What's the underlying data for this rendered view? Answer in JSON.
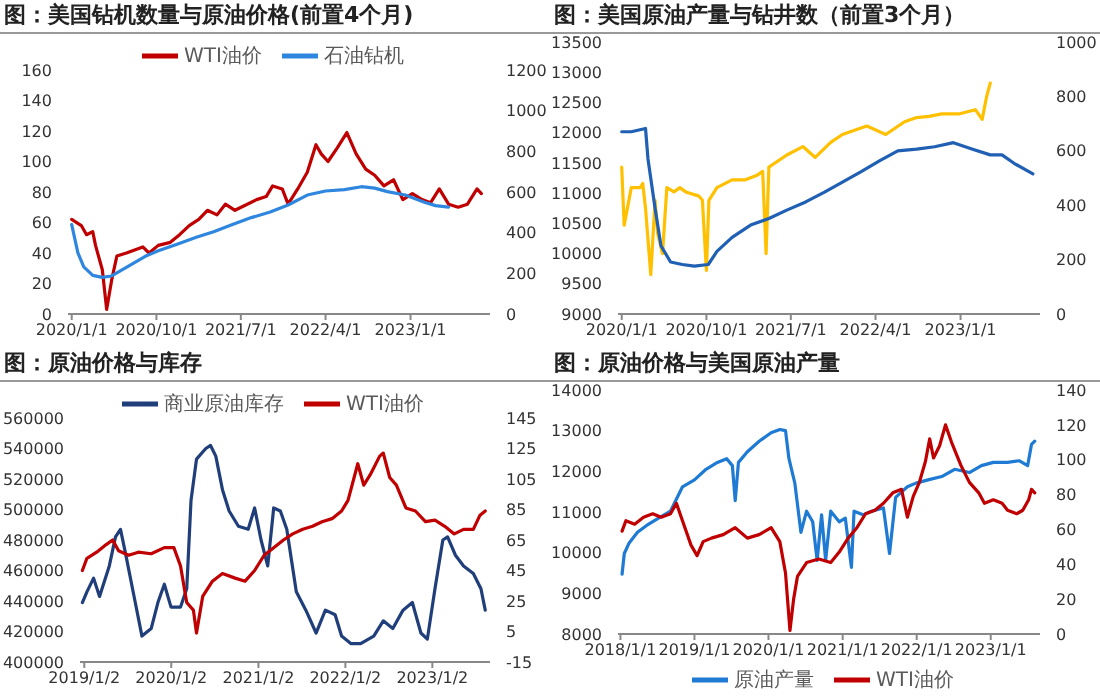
{
  "chart_data": [
    {
      "type": "line",
      "title": "图：美国钻机数量与原油价格(前置4个月)",
      "legend": "top",
      "xlim": [
        "2019-12-20",
        "2023-09-15"
      ],
      "xticks": [
        {
          "value": "2020-01-01",
          "label": "2020/1/1"
        },
        {
          "value": "2020-10-01",
          "label": "2020/10/1"
        },
        {
          "value": "2021-07-01",
          "label": "2021/7/1"
        },
        {
          "value": "2022-04-01",
          "label": "2022/4/1"
        },
        {
          "value": "2023-01-01",
          "label": "2023/1/1"
        }
      ],
      "ylim": [
        0,
        160
      ],
      "yticks": [
        0,
        20,
        40,
        60,
        80,
        100,
        120,
        140,
        160
      ],
      "y2lim": [
        0,
        1200
      ],
      "y2ticks": [
        0,
        200,
        400,
        600,
        800,
        1000,
        1200
      ],
      "series": [
        {
          "name": "WTI油价",
          "color": "#c00000",
          "x": [
            "2020-01-01",
            "2020-02-01",
            "2020-02-18",
            "2020-03-09",
            "2020-03-18",
            "2020-04-09",
            "2020-04-23",
            "2020-05-09",
            "2020-05-26",
            "2020-06-26",
            "2020-08-18",
            "2020-09-07",
            "2020-10-07",
            "2020-11-15",
            "2020-12-15",
            "2021-01-15",
            "2021-02-15",
            "2021-03-15",
            "2021-04-15",
            "2021-05-12",
            "2021-06-12",
            "2021-07-12",
            "2021-08-21",
            "2021-09-21",
            "2021-10-12",
            "2021-11-12",
            "2021-12-01",
            "2022-01-01",
            "2022-02-01",
            "2022-03-01",
            "2022-03-18",
            "2022-04-09",
            "2022-05-09",
            "2022-06-09",
            "2022-07-09",
            "2022-08-09",
            "2022-09-07",
            "2022-10-07",
            "2022-11-07",
            "2022-12-07",
            "2023-01-07",
            "2023-02-07",
            "2023-03-07",
            "2023-04-04",
            "2023-05-04",
            "2023-06-04",
            "2023-07-04",
            "2023-08-04",
            "2023-08-18"
          ],
          "values": [
            62,
            58,
            52,
            54,
            45,
            29,
            3,
            22,
            38,
            40,
            44,
            40,
            45,
            47,
            52,
            58,
            62,
            68,
            65,
            72,
            68,
            71,
            75,
            77,
            84,
            82,
            72,
            82,
            93,
            111,
            105,
            100,
            109,
            119,
            105,
            95,
            91,
            84,
            88,
            75,
            79,
            75,
            73,
            82,
            72,
            70,
            72,
            82,
            79
          ]
        },
        {
          "name": "石油钻机",
          "color": "#2e86de",
          "axis": "y2",
          "x": [
            "2020-01-01",
            "2020-01-21",
            "2020-02-09",
            "2020-03-09",
            "2020-04-09",
            "2020-05-09",
            "2020-06-09",
            "2020-07-18",
            "2020-08-26",
            "2020-10-07",
            "2020-12-07",
            "2021-02-07",
            "2021-04-04",
            "2021-06-04",
            "2021-08-04",
            "2021-10-04",
            "2021-12-01",
            "2022-02-01",
            "2022-04-01",
            "2022-06-01",
            "2022-07-26",
            "2022-09-07",
            "2022-10-18",
            "2022-12-15",
            "2023-02-15",
            "2023-03-23",
            "2023-05-04"
          ],
          "values": [
            440,
            301,
            232,
            190,
            180,
            187,
            215,
            249,
            284,
            311,
            343,
            377,
            405,
            440,
            474,
            502,
            536,
            585,
            605,
            612,
            626,
            619,
            602,
            585,
            550,
            533,
            526
          ]
        }
      ]
    },
    {
      "type": "line",
      "title": "图：美国原油产量与钻井数（前置3个月）",
      "xlim": [
        "2019-12-20",
        "2023-09-15"
      ],
      "xticks": [
        {
          "value": "2020-01-01",
          "label": "2020/1/1"
        },
        {
          "value": "2020-10-01",
          "label": "2020/10/1"
        },
        {
          "value": "2021-07-01",
          "label": "2021/7/1"
        },
        {
          "value": "2022-04-01",
          "label": "2022/4/1"
        },
        {
          "value": "2023-01-01",
          "label": "2023/1/1"
        }
      ],
      "ylim": [
        9000,
        13500
      ],
      "yticks": [
        9000,
        9500,
        10000,
        10500,
        11000,
        11500,
        12000,
        12500,
        13000,
        13500
      ],
      "y2lim": [
        0,
        1000
      ],
      "y2ticks": [
        0,
        200,
        400,
        600,
        800,
        1000
      ],
      "series": [
        {
          "color": "#ffc000",
          "x": [
            "2020-01-01",
            "2020-01-09",
            "2020-02-01",
            "2020-03-01",
            "2020-03-09",
            "2020-03-18",
            "2020-04-04",
            "2020-04-18",
            "2020-04-26",
            "2020-05-12",
            "2020-05-26",
            "2020-06-18",
            "2020-07-07",
            "2020-07-26",
            "2020-09-07",
            "2020-09-18",
            "2020-10-01",
            "2020-10-09",
            "2020-11-04",
            "2020-12-23",
            "2021-02-04",
            "2021-03-12",
            "2021-04-01",
            "2021-04-12",
            "2021-04-21",
            "2021-06-18",
            "2021-08-09",
            "2021-09-18",
            "2021-11-07",
            "2021-12-15",
            "2022-01-23",
            "2022-03-04",
            "2022-05-04",
            "2022-07-04",
            "2022-08-12",
            "2022-09-21",
            "2022-11-01",
            "2022-12-26",
            "2023-02-18",
            "2023-03-12",
            "2023-03-26",
            "2023-04-07"
          ],
          "values": [
            11430,
            10470,
            11090,
            11090,
            11160,
            10750,
            9650,
            10880,
            10340,
            10000,
            11090,
            11020,
            11090,
            11020,
            10950,
            10880,
            9720,
            10880,
            11090,
            11220,
            11220,
            11290,
            11360,
            10000,
            11430,
            11630,
            11770,
            11590,
            11840,
            11970,
            12040,
            12110,
            11970,
            12180,
            12250,
            12270,
            12310,
            12310,
            12380,
            12220,
            12590,
            12820
          ]
        },
        {
          "color": "#1f5fb4",
          "axis": "y2",
          "x": [
            "2020-01-01",
            "2020-02-01",
            "2020-03-18",
            "2020-03-26",
            "2020-04-18",
            "2020-05-07",
            "2020-06-07",
            "2020-07-15",
            "2020-08-23",
            "2020-10-07",
            "2020-11-04",
            "2020-12-23",
            "2021-02-21",
            "2021-04-21",
            "2021-06-18",
            "2021-08-18",
            "2021-10-18",
            "2021-12-15",
            "2022-02-15",
            "2022-04-15",
            "2022-06-12",
            "2022-08-12",
            "2022-10-09",
            "2022-12-09",
            "2023-02-09",
            "2023-04-07",
            "2023-05-15",
            "2023-06-23",
            "2023-08-23"
          ],
          "values": [
            670,
            670,
            682,
            570,
            388,
            251,
            191,
            182,
            176,
            182,
            230,
            282,
            327,
            351,
            382,
            412,
            448,
            485,
            524,
            564,
            600,
            606,
            615,
            630,
            606,
            585,
            585,
            554,
            515
          ]
        }
      ]
    },
    {
      "type": "line",
      "title": "图：原油价格与库存",
      "legend": "top",
      "xlim": [
        "2018-12-15",
        "2023-09-01"
      ],
      "xticks": [
        {
          "value": "2019-01-02",
          "label": "2019/1/2"
        },
        {
          "value": "2020-01-02",
          "label": "2020/1/2"
        },
        {
          "value": "2021-01-02",
          "label": "2021/1/2"
        },
        {
          "value": "2022-01-02",
          "label": "2022/1/2"
        },
        {
          "value": "2023-01-02",
          "label": "2023/1/2"
        }
      ],
      "ylim": [
        400000,
        560000
      ],
      "yticks": [
        400000,
        420000,
        440000,
        460000,
        480000,
        500000,
        520000,
        540000,
        560000
      ],
      "y2lim": [
        -15,
        145
      ],
      "y2ticks": [
        -15,
        5,
        25,
        45,
        65,
        85,
        105,
        125,
        145
      ],
      "series": [
        {
          "name": "商业原油库存",
          "color": "#203f7a",
          "x": [
            "2018-12-25",
            "2019-01-13",
            "2019-02-10",
            "2019-03-07",
            "2019-04-17",
            "2019-05-13",
            "2019-06-03",
            "2019-06-23",
            "2019-08-04",
            "2019-09-01",
            "2019-10-10",
            "2019-11-07",
            "2019-12-04",
            "2020-01-01",
            "2020-02-10",
            "2020-03-07",
            "2020-03-25",
            "2020-04-17",
            "2020-05-26",
            "2020-06-15",
            "2020-07-07",
            "2020-08-04",
            "2020-09-01",
            "2020-10-10",
            "2020-11-20",
            "2020-12-17",
            "2021-01-13",
            "2021-02-10",
            "2021-03-07",
            "2021-04-04",
            "2021-05-01",
            "2021-06-10",
            "2021-07-20",
            "2021-09-01",
            "2021-10-10",
            "2021-11-20",
            "2021-12-17",
            "2022-01-26",
            "2022-03-07",
            "2022-05-01",
            "2022-06-10",
            "2022-07-20",
            "2022-09-01",
            "2022-10-10",
            "2022-11-15",
            "2022-12-12",
            "2023-01-13",
            "2023-02-15",
            "2023-03-07",
            "2023-04-09",
            "2023-05-13",
            "2023-06-23",
            "2023-07-25",
            "2023-08-12"
          ],
          "values": [
            439000,
            446000,
            455000,
            443000,
            463000,
            482000,
            487000,
            472000,
            439000,
            417000,
            422000,
            439000,
            451000,
            436000,
            436000,
            448000,
            506000,
            533000,
            540000,
            542000,
            535000,
            513000,
            499000,
            489000,
            487000,
            501000,
            480000,
            463000,
            501000,
            499000,
            487000,
            446000,
            434000,
            419000,
            434000,
            431000,
            417000,
            412000,
            412000,
            417000,
            427000,
            422000,
            434000,
            439000,
            419000,
            415000,
            448000,
            480000,
            482000,
            470000,
            463000,
            458000,
            448000,
            434000
          ]
        },
        {
          "name": "WTI油价",
          "color": "#c00000",
          "axis": "y2",
          "x": [
            "2018-12-25",
            "2019-01-13",
            "2019-02-23",
            "2019-04-04",
            "2019-05-01",
            "2019-05-26",
            "2019-07-07",
            "2019-08-17",
            "2019-10-10",
            "2019-12-04",
            "2020-01-13",
            "2020-02-10",
            "2020-03-07",
            "2020-04-04",
            "2020-04-17",
            "2020-05-13",
            "2020-06-23",
            "2020-08-04",
            "2020-09-26",
            "2020-11-07",
            "2020-12-17",
            "2021-01-26",
            "2021-03-07",
            "2021-04-17",
            "2021-05-26",
            "2021-07-07",
            "2021-08-17",
            "2021-09-26",
            "2021-11-07",
            "2021-12-17",
            "2022-01-13",
            "2022-02-23",
            "2022-03-20",
            "2022-04-17",
            "2022-05-26",
            "2022-06-10",
            "2022-07-07",
            "2022-08-04",
            "2022-09-13",
            "2022-10-23",
            "2022-12-04",
            "2023-01-13",
            "2023-02-23",
            "2023-04-04",
            "2023-05-13",
            "2023-06-23",
            "2023-07-20",
            "2023-08-12"
          ],
          "values": [
            45,
            53,
            57,
            62,
            65,
            58,
            55,
            57,
            56,
            60,
            60,
            48,
            24,
            19,
            4,
            28,
            38,
            43,
            40,
            38,
            45,
            55,
            60,
            65,
            69,
            72,
            74,
            77,
            79,
            84,
            91,
            115,
            101,
            108,
            120,
            122,
            106,
            101,
            86,
            84,
            77,
            78,
            74,
            69,
            72,
            72,
            81,
            84
          ]
        }
      ]
    },
    {
      "type": "line",
      "title": "图：原油价格与美国原油产量",
      "legend": "bottom",
      "xlim": [
        "2017-12-20",
        "2023-09-01"
      ],
      "xticks": [
        {
          "value": "2018-01-01",
          "label": "2018/1/1"
        },
        {
          "value": "2019-01-01",
          "label": "2019/1/1"
        },
        {
          "value": "2020-01-01",
          "label": "2020/1/1"
        },
        {
          "value": "2021-01-01",
          "label": "2021/1/1"
        },
        {
          "value": "2022-01-01",
          "label": "2022/1/1"
        },
        {
          "value": "2023-01-01",
          "label": "2023/1/1"
        }
      ],
      "ylim": [
        8000,
        14000
      ],
      "yticks": [
        8000,
        9000,
        10000,
        11000,
        12000,
        13000,
        14000
      ],
      "y2lim": [
        0,
        140
      ],
      "y2ticks": [
        0,
        20,
        40,
        60,
        80,
        100,
        120,
        140
      ],
      "series": [
        {
          "name": "原油产量",
          "color": "#1f7ad4",
          "x": [
            "2018-01-09",
            "2018-01-20",
            "2018-02-13",
            "2018-03-26",
            "2018-05-10",
            "2018-07-08",
            "2018-09-05",
            "2018-11-03",
            "2019-01-01",
            "2019-02-27",
            "2019-04-24",
            "2019-06-09",
            "2019-07-07",
            "2019-07-21",
            "2019-08-06",
            "2019-09-19",
            "2019-11-16",
            "2020-01-14",
            "2020-02-26",
            "2020-03-25",
            "2020-04-11",
            "2020-05-10",
            "2020-06-09",
            "2020-07-07",
            "2020-08-06",
            "2020-08-28",
            "2020-09-19",
            "2020-10-09",
            "2020-11-03",
            "2020-12-15",
            "2021-01-14",
            "2021-02-13",
            "2021-02-26",
            "2021-04-11",
            "2021-05-23",
            "2021-07-21",
            "2021-08-20",
            "2021-09-19",
            "2021-11-16",
            "2021-12-28",
            "2022-02-26",
            "2022-05-09",
            "2022-07-07",
            "2022-09-18",
            "2022-11-16",
            "2023-01-14",
            "2023-03-25",
            "2023-05-23",
            "2023-07-02",
            "2023-07-21",
            "2023-08-06"
          ],
          "values": [
            9470,
            9980,
            10240,
            10500,
            10670,
            10850,
            11020,
            11620,
            11790,
            12050,
            12220,
            12310,
            12140,
            11280,
            12220,
            12480,
            12740,
            12950,
            13030,
            13000,
            12310,
            11710,
            10500,
            11020,
            10760,
            9810,
            10930,
            9810,
            11020,
            10760,
            10850,
            9640,
            11020,
            10930,
            11020,
            11100,
            9980,
            11360,
            11620,
            11710,
            11790,
            11880,
            12050,
            11970,
            12140,
            12220,
            12220,
            12260,
            12140,
            12660,
            12740
          ]
        },
        {
          "name": "WTI油价",
          "color": "#c00000",
          "axis": "y2",
          "x": [
            "2018-01-09",
            "2018-01-28",
            "2018-03-12",
            "2018-04-25",
            "2018-06-09",
            "2018-07-21",
            "2018-09-05",
            "2018-10-04",
            "2018-11-03",
            "2018-12-15",
            "2019-01-14",
            "2019-02-13",
            "2019-03-26",
            "2019-05-23",
            "2019-07-21",
            "2019-09-19",
            "2019-11-16",
            "2020-01-14",
            "2020-02-26",
            "2020-03-25",
            "2020-04-16",
            "2020-05-04",
            "2020-05-23",
            "2020-07-07",
            "2020-09-05",
            "2020-11-03",
            "2020-12-15",
            "2021-01-28",
            "2021-03-12",
            "2021-04-24",
            "2021-06-09",
            "2021-07-21",
            "2021-09-05",
            "2021-10-18",
            "2021-11-16",
            "2021-12-15",
            "2022-01-14",
            "2022-02-13",
            "2022-03-06",
            "2022-03-25",
            "2022-04-24",
            "2022-05-23",
            "2022-06-22",
            "2022-08-06",
            "2022-09-18",
            "2022-11-03",
            "2022-12-01",
            "2023-01-14",
            "2023-02-26",
            "2023-03-25",
            "2023-05-09",
            "2023-06-08",
            "2023-07-07",
            "2023-07-21",
            "2023-08-06"
          ],
          "values": [
            59,
            65,
            63,
            67,
            69,
            67,
            69,
            75,
            65,
            51,
            45,
            53,
            55,
            57,
            61,
            55,
            57,
            61,
            53,
            35,
            2,
            20,
            33,
            41,
            43,
            41,
            47,
            55,
            61,
            69,
            71,
            75,
            81,
            83,
            67,
            79,
            87,
            99,
            112,
            101,
            108,
            120,
            110,
            97,
            87,
            81,
            75,
            77,
            75,
            71,
            69,
            71,
            77,
            83,
            81
          ]
        }
      ]
    }
  ]
}
